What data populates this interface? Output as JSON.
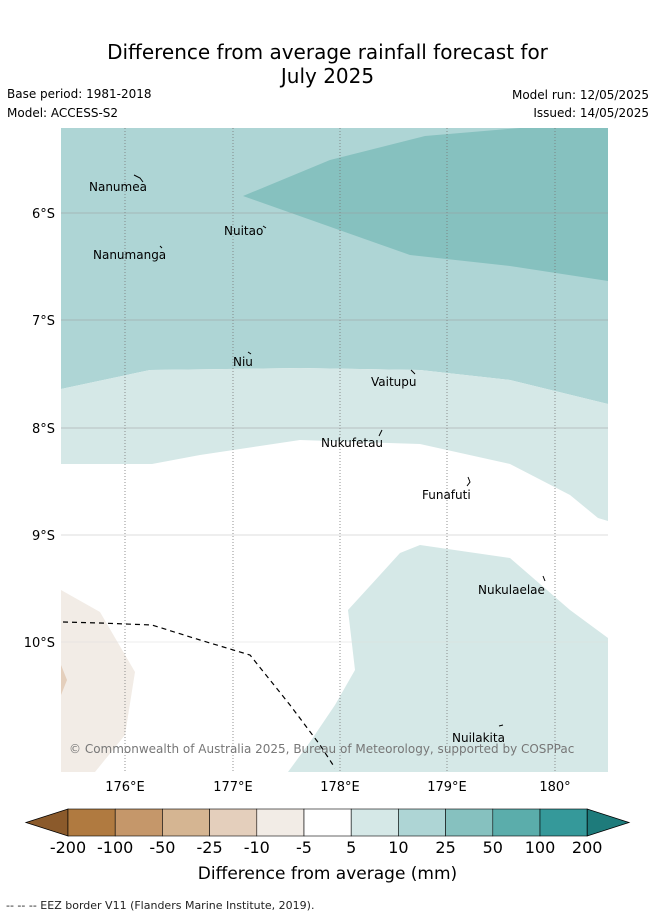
{
  "title_line1": "Difference from average rainfall forecast for",
  "title_line2": "July 2025",
  "base_period": "Base period: 1981-2018",
  "model": "Model: ACCESS-S2",
  "model_run": "Model run: 12/05/2025",
  "issued": "Issued: 14/05/2025",
  "map": {
    "lat_labels": [
      "6°S",
      "7°S",
      "8°S",
      "9°S",
      "10°S"
    ],
    "lon_labels": [
      "176°E",
      "177°E",
      "178°E",
      "179°E",
      "180°"
    ],
    "islands": [
      "Nanumea",
      "Nuitao",
      "Nanumanga",
      "Niu",
      "Vaitupu",
      "Nukufetau",
      "Funafuti",
      "Nukulaelae",
      "Nuilakita"
    ]
  },
  "credit": "© Commonwealth of Australia 2025, Bureau of Meteorology, supported by COSPPac",
  "colorbar": {
    "title": "Difference from average (mm)",
    "tick_labels": [
      "-200",
      "-100",
      "-50",
      "-25",
      "-10",
      "-5",
      "5",
      "10",
      "25",
      "50",
      "100",
      "200"
    ],
    "colors": [
      "#8b5a2b",
      "#b07a40",
      "#c5976a",
      "#d5b592",
      "#e4cfbc",
      "#f2ece6",
      "#ffffff",
      "#d5e8e7",
      "#aed5d5",
      "#86c1bf",
      "#5badab",
      "#35999a",
      "#1e7b7b"
    ]
  },
  "footer": "-- -- -- EEZ border V11 (Flanders Marine Institute, 2019)."
}
